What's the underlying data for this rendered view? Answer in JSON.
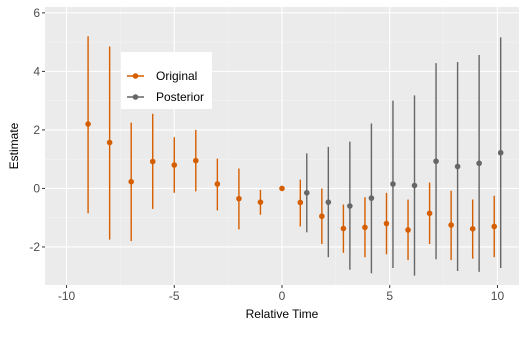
{
  "chart_data": {
    "type": "scatter",
    "title": "",
    "xlabel": "Relative Time",
    "ylabel": "Estimate",
    "xlim": [
      -11,
      11
    ],
    "ylim": [
      -3.3,
      6.2
    ],
    "xticks": [
      -10,
      -5,
      0,
      5,
      10
    ],
    "yticks": [
      -2,
      0,
      2,
      4,
      6
    ],
    "x_tick_labels": [
      "-10",
      "-5",
      "0",
      "5",
      "10"
    ],
    "y_tick_labels": [
      "-2",
      "0",
      "2",
      "4",
      "6"
    ],
    "grid": true,
    "legend_position": "top-left-inset",
    "series": [
      {
        "name": "Original",
        "color": "#D55E00",
        "points": [
          {
            "x": -9,
            "y": 2.2,
            "lo": -0.85,
            "hi": 5.2
          },
          {
            "x": -8,
            "y": 1.57,
            "lo": -1.75,
            "hi": 4.85
          },
          {
            "x": -7,
            "y": 0.23,
            "lo": -1.8,
            "hi": 2.25
          },
          {
            "x": -6,
            "y": 0.92,
            "lo": -0.7,
            "hi": 2.55
          },
          {
            "x": -5,
            "y": 0.8,
            "lo": -0.15,
            "hi": 1.75
          },
          {
            "x": -4,
            "y": 0.95,
            "lo": -0.1,
            "hi": 2.0
          },
          {
            "x": -3,
            "y": 0.15,
            "lo": -0.75,
            "hi": 1.02
          },
          {
            "x": -2,
            "y": -0.35,
            "lo": -1.4,
            "hi": 0.68
          },
          {
            "x": -1,
            "y": -0.47,
            "lo": -0.9,
            "hi": -0.05
          },
          {
            "x": 0,
            "y": 0.0,
            "lo": 0.0,
            "hi": 0.0
          },
          {
            "x": 0.85,
            "y": -0.48,
            "lo": -1.3,
            "hi": 0.3
          },
          {
            "x": 1.85,
            "y": -0.95,
            "lo": -1.9,
            "hi": 0.0
          },
          {
            "x": 2.85,
            "y": -1.37,
            "lo": -2.2,
            "hi": -0.55
          },
          {
            "x": 3.85,
            "y": -1.33,
            "lo": -2.35,
            "hi": -0.3
          },
          {
            "x": 4.85,
            "y": -1.2,
            "lo": -2.25,
            "hi": -0.15
          },
          {
            "x": 5.85,
            "y": -1.42,
            "lo": -2.45,
            "hi": -0.38
          },
          {
            "x": 6.85,
            "y": -0.85,
            "lo": -1.9,
            "hi": 0.2
          },
          {
            "x": 7.85,
            "y": -1.25,
            "lo": -2.45,
            "hi": -0.08
          },
          {
            "x": 8.85,
            "y": -1.38,
            "lo": -2.4,
            "hi": -0.38
          },
          {
            "x": 9.85,
            "y": -1.3,
            "lo": -2.35,
            "hi": -0.25
          }
        ]
      },
      {
        "name": "Posterior",
        "color": "#666666",
        "points": [
          {
            "x": 1.15,
            "y": -0.15,
            "lo": -1.5,
            "hi": 1.2
          },
          {
            "x": 2.15,
            "y": -0.47,
            "lo": -2.35,
            "hi": 1.42
          },
          {
            "x": 3.15,
            "y": -0.6,
            "lo": -2.78,
            "hi": 1.6
          },
          {
            "x": 4.15,
            "y": -0.33,
            "lo": -2.9,
            "hi": 2.22
          },
          {
            "x": 5.15,
            "y": 0.15,
            "lo": -2.72,
            "hi": 3.0
          },
          {
            "x": 6.15,
            "y": 0.1,
            "lo": -2.98,
            "hi": 3.18
          },
          {
            "x": 7.15,
            "y": 0.93,
            "lo": -2.42,
            "hi": 4.28
          },
          {
            "x": 8.15,
            "y": 0.75,
            "lo": -2.82,
            "hi": 4.32
          },
          {
            "x": 9.15,
            "y": 0.86,
            "lo": -2.85,
            "hi": 4.56
          },
          {
            "x": 10.15,
            "y": 1.22,
            "lo": -2.72,
            "hi": 5.16
          }
        ]
      }
    ]
  }
}
